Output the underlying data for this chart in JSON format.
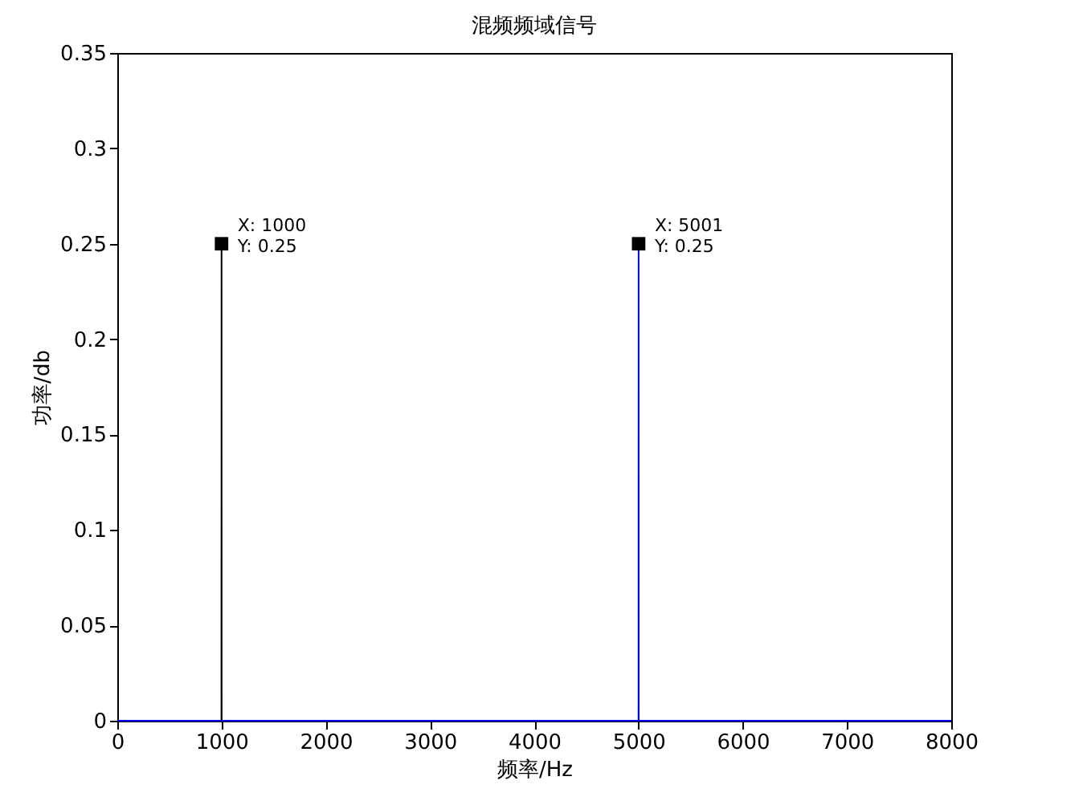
{
  "chart_data": {
    "type": "line",
    "title": "混频频域信号",
    "xlabel": "频率/Hz",
    "ylabel": "功率/db",
    "series": [
      {
        "color": "#0000ff",
        "x": [
          0,
          5000,
          5001,
          5002,
          8000
        ],
        "values": [
          0,
          0,
          0.25,
          0,
          0
        ]
      },
      {
        "color": "#000000",
        "x": [
          999,
          1000,
          1001
        ],
        "values": [
          0,
          0.25,
          0
        ]
      },
      {
        "type": "scatter",
        "marker": "square",
        "color": "#000000",
        "x": [
          1000,
          5001
        ],
        "values": [
          0.25,
          0.25
        ]
      }
    ],
    "xlim": [
      0,
      8000
    ],
    "xticks": [
      0,
      1000,
      2000,
      3000,
      4000,
      5000,
      6000,
      7000,
      8000
    ],
    "ylim": [
      0,
      0.35
    ],
    "yticks": [
      0,
      0.05,
      0.1,
      0.15,
      0.2,
      0.25,
      0.3,
      0.35
    ],
    "grid": false,
    "annotations": [
      {
        "text": "X: 1000\nY: 0.25",
        "x": 1000,
        "y": 0.25
      },
      {
        "text": "X: 5001\nY: 0.25",
        "x": 5001,
        "y": 0.25
      }
    ]
  }
}
